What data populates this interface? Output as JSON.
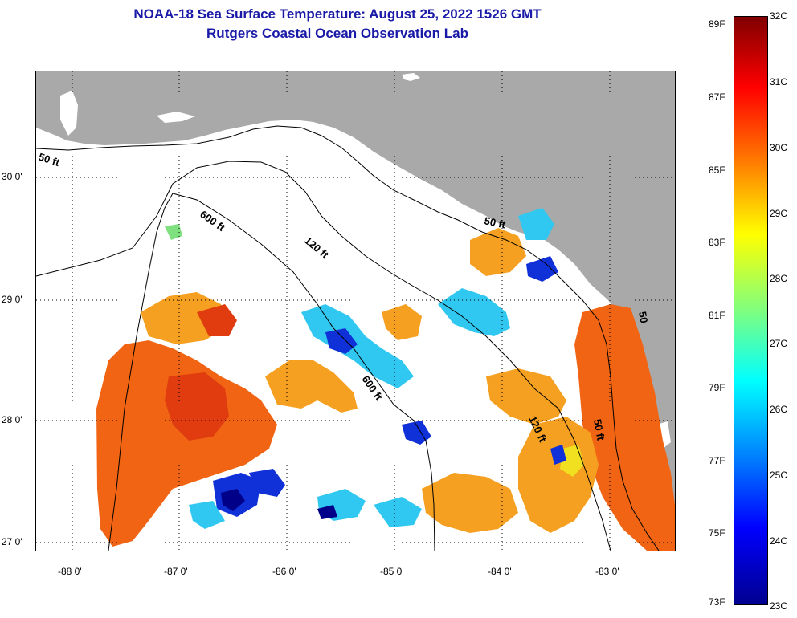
{
  "title": {
    "line1": "NOAA-18 Sea Surface Temperature:  August 25, 2022 1526 GMT",
    "line2": "Rutgers Coastal Ocean Observation Lab"
  },
  "axes": {
    "x_ticks": [
      "-88 0'",
      "-87 0'",
      "-86 0'",
      "-85 0'",
      "-84 0'",
      "-83 0'"
    ],
    "y_ticks": [
      "30 0'",
      "29 0'",
      "28 0'",
      "27 0'"
    ]
  },
  "contours": {
    "c50_west": "50 ft",
    "c600_north": "600 ft",
    "c120": "120 ft",
    "c50_east": "50 ft",
    "c600_south": "600 ft",
    "c120_south": "120 ft",
    "c50_south": "50 ft",
    "c50_short": "50"
  },
  "colorbar": {
    "fahrenheit": [
      "89F",
      "87F",
      "85F",
      "83F",
      "81F",
      "79F",
      "77F",
      "75F",
      "73F"
    ],
    "celsius": [
      "32C",
      "31C",
      "30C",
      "29C",
      "28C",
      "27C",
      "26C",
      "25C",
      "24C",
      "23C"
    ]
  },
  "colors": {
    "land": "#a9a9a9",
    "title": "#1a1aa8",
    "warm": "#f06414",
    "hot": "#e03c10",
    "mid": "#f5a020",
    "yellow": "#f0e020",
    "cyan": "#30c8f0",
    "blue": "#1030d8",
    "navy": "#000088"
  }
}
